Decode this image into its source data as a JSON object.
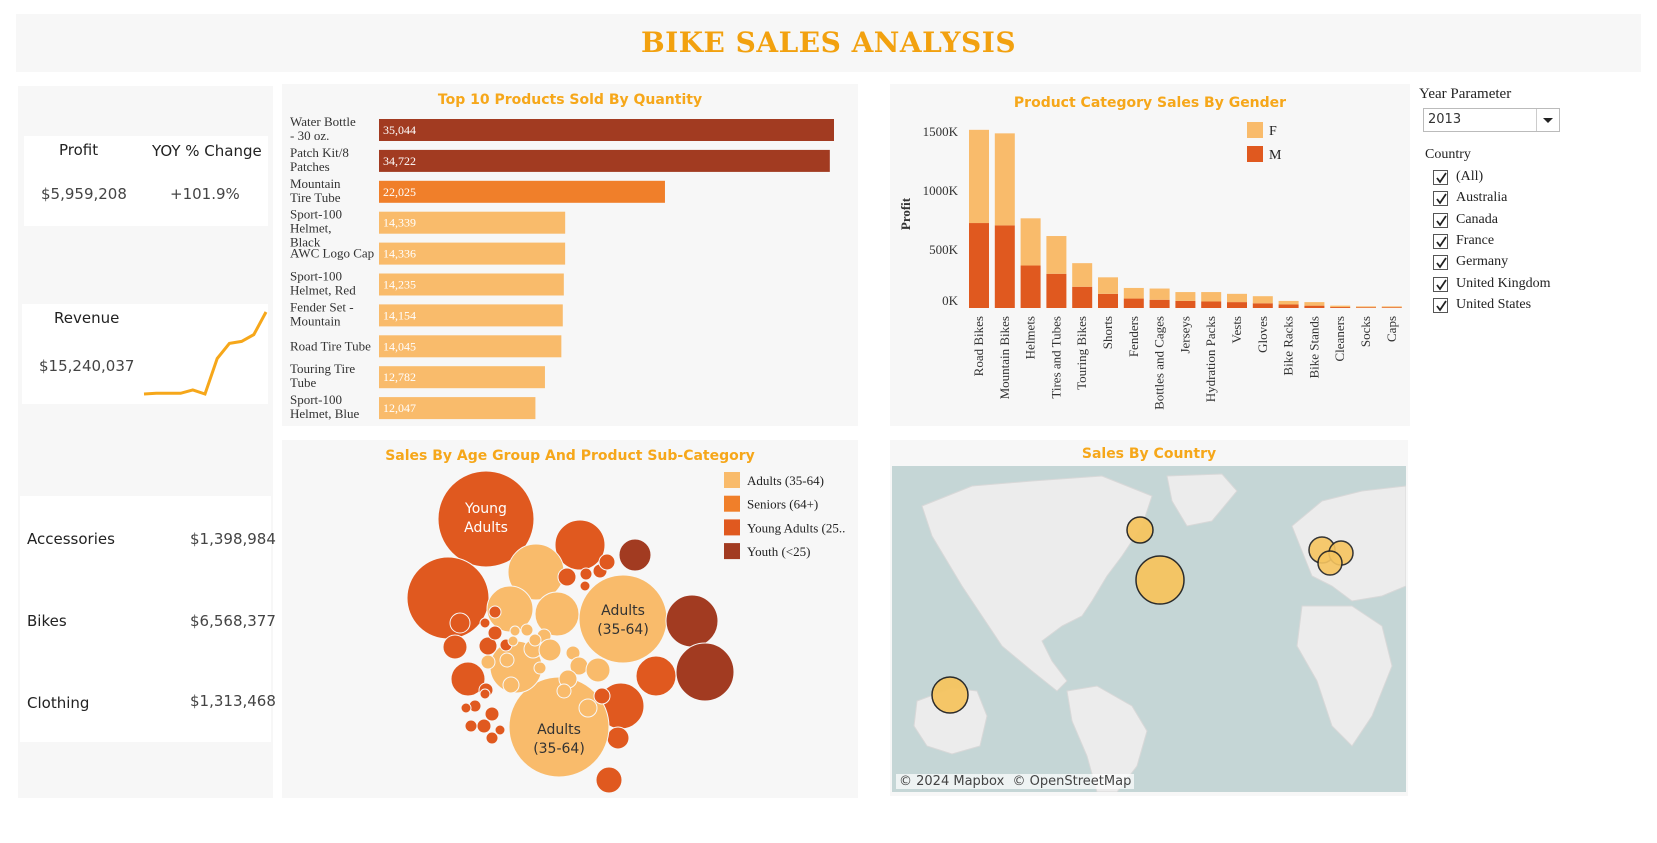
{
  "title": "BIKE SALES ANALYSIS",
  "kpis": {
    "profit_label": "Profit",
    "profit_value": "$5,959,208",
    "yoy_label": "YOY % Change",
    "yoy_value": "+101.9%",
    "revenue_label": "Revenue",
    "revenue_value": "$15,240,037"
  },
  "categories": [
    {
      "name": "Accessories",
      "value": "$1,398,984"
    },
    {
      "name": "Bikes",
      "value": "$6,568,377"
    },
    {
      "name": "Clothing",
      "value": "$1,313,468"
    }
  ],
  "filters": {
    "year_parameter_label": "Year Parameter",
    "year_value": "2013",
    "country_label": "Country",
    "countries": [
      "(All)",
      "Australia",
      "Canada",
      "France",
      "Germany",
      "United Kingdom",
      "United States"
    ]
  },
  "colors": {
    "title": "#f2a10f",
    "panel_title": "#f6a71a",
    "light_orange": "#f9bb6b",
    "orange": "#f07f2a",
    "dark_orange": "#e0591f",
    "brown": "#a23b21"
  },
  "icons": {
    "dropdown": "caret-down-icon",
    "checkbox": "check-icon"
  },
  "map_attribution": "© 2024 Mapbox  © OpenStreetMap",
  "chart_data": [
    {
      "type": "line",
      "title": "",
      "note": "revenue trend sparkline (unlabeled)",
      "values": [
        1.0,
        1.1,
        1.1,
        1.1,
        1.6,
        1.0,
        6.2,
        8.4,
        8.7,
        9.7,
        13.0
      ]
    },
    {
      "type": "bar",
      "title": "Top 10 Products Sold By Quantity",
      "categories": [
        "Water Bottle - 30 oz.",
        "Patch Kit/8 Patches",
        "Mountain Tire Tube",
        "Sport-100 Helmet, Black",
        "AWC Logo Cap",
        "Sport-100 Helmet, Red",
        "Fender Set - Mountain",
        "Road Tire Tube",
        "Touring Tire Tube",
        "Sport-100 Helmet, Blue"
      ],
      "values": [
        35044,
        34722,
        22025,
        14339,
        14336,
        14235,
        14154,
        14045,
        12782,
        12047
      ],
      "labels": [
        "35,044",
        "34,722",
        "22,025",
        "14,339",
        "14,336",
        "14,235",
        "14,154",
        "14,045",
        "12,782",
        "12,047"
      ]
    },
    {
      "type": "bar",
      "title": "Product Category Sales By Gender",
      "ylabel": "Profit",
      "ylim": [
        0,
        1600000
      ],
      "yticks": [
        "0K",
        "500K",
        "1000K",
        "1500K"
      ],
      "categories": [
        "Road Bikes",
        "Mountain Bikes",
        "Helmets",
        "Tires and Tubes",
        "Touring Bikes",
        "Shorts",
        "Fenders",
        "Bottles and Cages",
        "Jerseys",
        "Hydration Packs",
        "Vests",
        "Gloves",
        "Bike Racks",
        "Bike Stands",
        "Cleaners",
        "Socks",
        "Caps"
      ],
      "series": [
        {
          "name": "M",
          "values": [
            720000,
            700000,
            360000,
            290000,
            180000,
            120000,
            80000,
            70000,
            60000,
            55000,
            50000,
            40000,
            30000,
            20000,
            8000,
            6000,
            6000
          ]
        },
        {
          "name": "F",
          "values": [
            790000,
            780000,
            400000,
            320000,
            200000,
            140000,
            90000,
            95000,
            75000,
            80000,
            70000,
            60000,
            30000,
            30000,
            12000,
            8000,
            8000
          ]
        }
      ],
      "legend": "top-right"
    },
    {
      "type": "scatter",
      "title": "Sales By Age Group And Product Sub-Category",
      "legend_entries": [
        "Adults (35-64)",
        "Seniors (64+)",
        "Young Adults (25..",
        "Youth (<25)"
      ],
      "labels": [
        "Young Adults",
        "Adults (35-64)",
        "Adults (35-64)"
      ]
    },
    {
      "type": "scatter",
      "title": "Sales By Country",
      "countries": [
        "Canada",
        "United States",
        "United Kingdom",
        "France",
        "Germany",
        "Australia"
      ]
    }
  ]
}
